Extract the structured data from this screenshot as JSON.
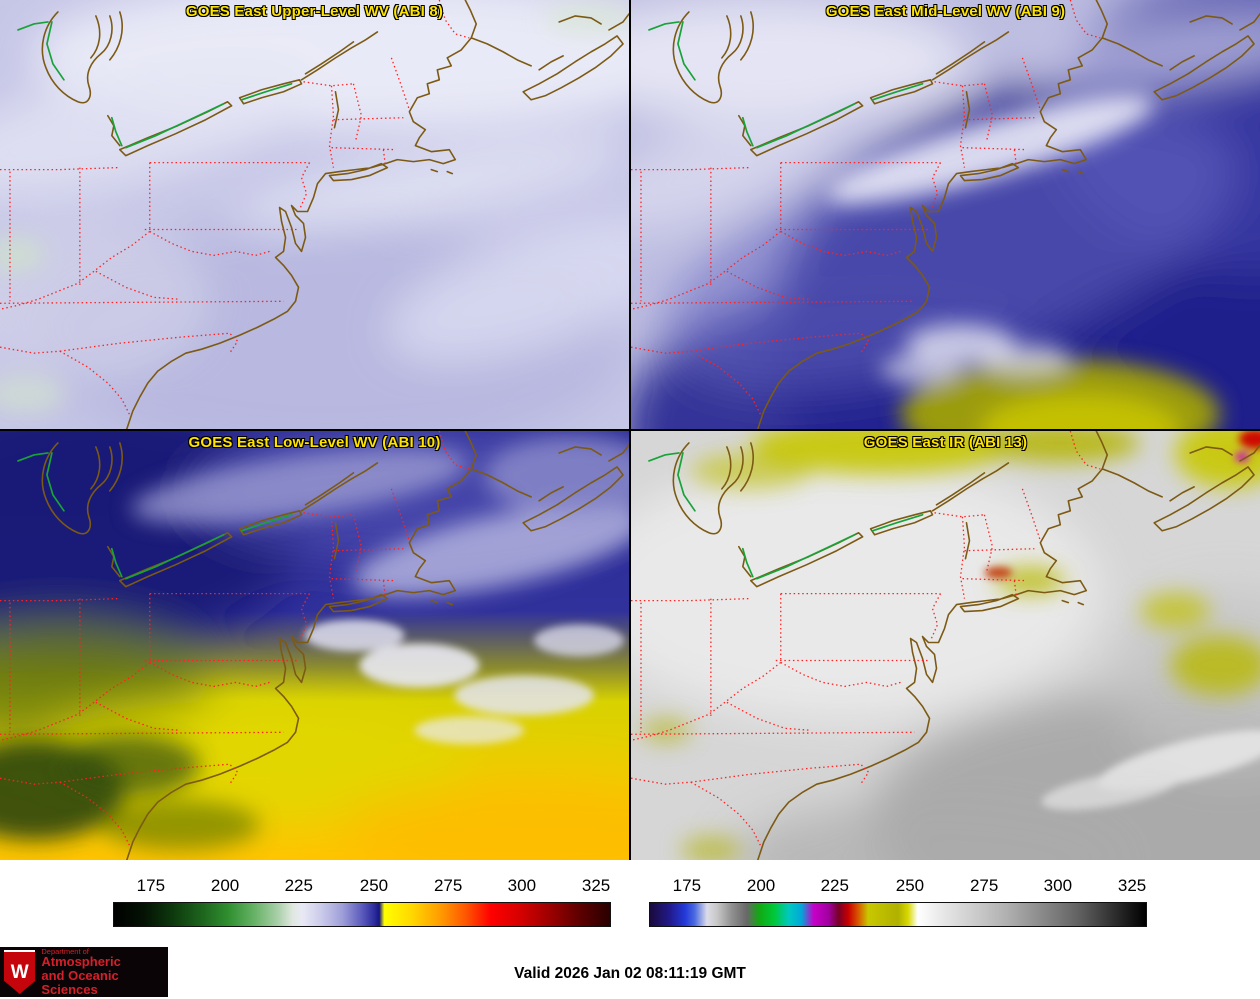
{
  "app": {
    "description": "GOES East four-panel satellite imagery display"
  },
  "panels": [
    {
      "title": "GOES East Upper-Level WV (ABI 8)"
    },
    {
      "title": "GOES East Mid-Level WV (ABI 9)"
    },
    {
      "title": "GOES East Low-Level WV (ABI 10)"
    },
    {
      "title": "GOES East IR (ABI 13)"
    }
  ],
  "panel_title_color": "#ffe400",
  "map_colors": {
    "coastline": "#7c5a14",
    "state_borders": "#ff2222",
    "international_border_green": "#18a339"
  },
  "colorbars": [
    {
      "name": "water-vapor-scale",
      "ticks": [
        "175",
        "200",
        "225",
        "250",
        "275",
        "300",
        "325"
      ],
      "tick_positions_pct": [
        7.6,
        22.5,
        37.3,
        52.4,
        67.3,
        82.1,
        97.0
      ],
      "stops": [
        [
          "#000000",
          0
        ],
        [
          "#041204",
          6
        ],
        [
          "#0d3a0d",
          12
        ],
        [
          "#1e661e",
          18
        ],
        [
          "#2f8f2f",
          23
        ],
        [
          "#63b063",
          28
        ],
        [
          "#a8cfa8",
          33
        ],
        [
          "#dfe8df",
          36
        ],
        [
          "#e9e9f5",
          38
        ],
        [
          "#c9c9ea",
          42
        ],
        [
          "#9f9fd9",
          46
        ],
        [
          "#5b5bbd",
          50
        ],
        [
          "#2c2c9e",
          52.5
        ],
        [
          "#16167e",
          53.5
        ],
        [
          "#ffff00",
          54.5
        ],
        [
          "#ffd800",
          60
        ],
        [
          "#ff9900",
          66
        ],
        [
          "#ff5500",
          71
        ],
        [
          "#ff0000",
          76
        ],
        [
          "#d40000",
          82
        ],
        [
          "#9b0000",
          88
        ],
        [
          "#660000",
          93
        ],
        [
          "#3a0000",
          98
        ],
        [
          "#2a0000",
          100
        ]
      ]
    },
    {
      "name": "infrared-scale",
      "ticks": [
        "175",
        "200",
        "225",
        "250",
        "275",
        "300",
        "325"
      ],
      "tick_positions_pct": [
        7.6,
        22.5,
        37.3,
        52.4,
        67.3,
        82.1,
        97.0
      ],
      "stops": [
        [
          "#1a0a3c",
          0
        ],
        [
          "#221a8c",
          4
        ],
        [
          "#2238d8",
          7
        ],
        [
          "#4a6ae0",
          9
        ],
        [
          "#dcdce8",
          11.5
        ],
        [
          "#c8c8c8",
          13.5
        ],
        [
          "#909090",
          16.5
        ],
        [
          "#686868",
          19.5
        ],
        [
          "#12a812",
          22
        ],
        [
          "#00c838",
          25
        ],
        [
          "#00c8c0",
          28
        ],
        [
          "#00a8d8",
          30.5
        ],
        [
          "#c800c8",
          33
        ],
        [
          "#a000a0",
          36
        ],
        [
          "#780028",
          38
        ],
        [
          "#c80000",
          40
        ],
        [
          "#d85800",
          42
        ],
        [
          "#c8c800",
          44
        ],
        [
          "#b0b000",
          50
        ],
        [
          "#d8d800",
          52
        ],
        [
          "#ffffff",
          54
        ],
        [
          "#ececec",
          58
        ],
        [
          "#b0b0b0",
          72
        ],
        [
          "#646464",
          86
        ],
        [
          "#000000",
          100
        ]
      ]
    }
  ],
  "footer": {
    "valid_time": "Valid 2026 Jan 02 08:11:19 GMT",
    "logo": {
      "dept": "Department of",
      "line1": "Atmospheric",
      "line2": "and Oceanic Sciences",
      "crest_letter": "W"
    }
  }
}
